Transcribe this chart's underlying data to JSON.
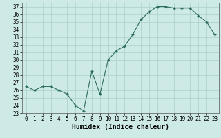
{
  "x": [
    0,
    1,
    2,
    3,
    4,
    5,
    6,
    7,
    8,
    9,
    10,
    11,
    12,
    13,
    14,
    15,
    16,
    17,
    18,
    19,
    20,
    21,
    22,
    23
  ],
  "y": [
    26.5,
    26.0,
    26.5,
    26.5,
    26.0,
    25.5,
    24.0,
    23.3,
    28.5,
    25.5,
    30.0,
    31.2,
    31.8,
    33.3,
    35.3,
    36.3,
    37.0,
    37.0,
    36.8,
    36.8,
    36.8,
    35.8,
    35.0,
    33.3
  ],
  "xlabel": "Humidex (Indice chaleur)",
  "xlim": [
    -0.5,
    23.5
  ],
  "ylim": [
    23,
    37.5
  ],
  "yticks": [
    23,
    24,
    25,
    26,
    27,
    28,
    29,
    30,
    31,
    32,
    33,
    34,
    35,
    36,
    37
  ],
  "xticks": [
    0,
    1,
    2,
    3,
    4,
    5,
    6,
    7,
    8,
    9,
    10,
    11,
    12,
    13,
    14,
    15,
    16,
    17,
    18,
    19,
    20,
    21,
    22,
    23
  ],
  "line_color": "#2a6b5a",
  "bg_color": "#ceeae6",
  "grid_color": "#aacfc9",
  "axis_fontsize": 6.5,
  "tick_fontsize": 5.5,
  "xlabel_fontsize": 7
}
